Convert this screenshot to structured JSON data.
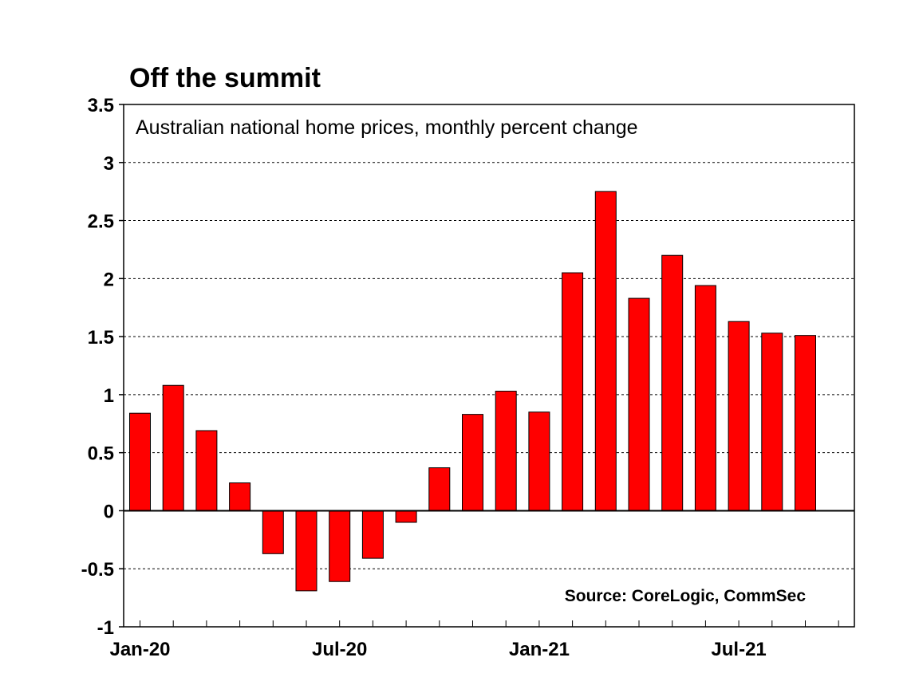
{
  "chart_data": {
    "type": "bar",
    "title": "Off the summit",
    "subtitle": "Australian national home prices, monthly percent change",
    "source": "Source: CoreLogic, CommSec",
    "categories": [
      "Jan-20",
      "Feb-20",
      "Mar-20",
      "Apr-20",
      "May-20",
      "Jun-20",
      "Jul-20",
      "Aug-20",
      "Sep-20",
      "Oct-20",
      "Nov-20",
      "Dec-20",
      "Jan-21",
      "Feb-21",
      "Mar-21",
      "Apr-21",
      "May-21",
      "Jun-21",
      "Jul-21",
      "Aug-21",
      "Sep-21"
    ],
    "values": [
      0.84,
      1.08,
      0.69,
      0.24,
      -0.37,
      -0.69,
      -0.61,
      -0.41,
      -0.1,
      0.37,
      0.83,
      1.03,
      0.85,
      2.05,
      2.75,
      1.83,
      2.2,
      1.94,
      1.63,
      1.53,
      1.51
    ],
    "x_tick_labels": [
      {
        "label": "Jan-20",
        "index": 0
      },
      {
        "label": "Jul-20",
        "index": 6
      },
      {
        "label": "Jan-21",
        "index": 12
      },
      {
        "label": "Jul-21",
        "index": 18
      }
    ],
    "ylim": [
      -1,
      3.5
    ],
    "yticks": [
      3.5,
      3,
      2.5,
      2,
      1.5,
      1,
      0.5,
      0,
      -0.5,
      -1
    ],
    "ytick_labels": [
      "3.5",
      "3",
      "2.5",
      "2",
      "1.5",
      "1",
      "0.5",
      "0",
      "-0.5",
      "-1"
    ],
    "grid": "horizontal dashed",
    "xlabel": "",
    "ylabel": "",
    "bar_color": "#ff0000",
    "bar_edge_color": "#000000"
  }
}
